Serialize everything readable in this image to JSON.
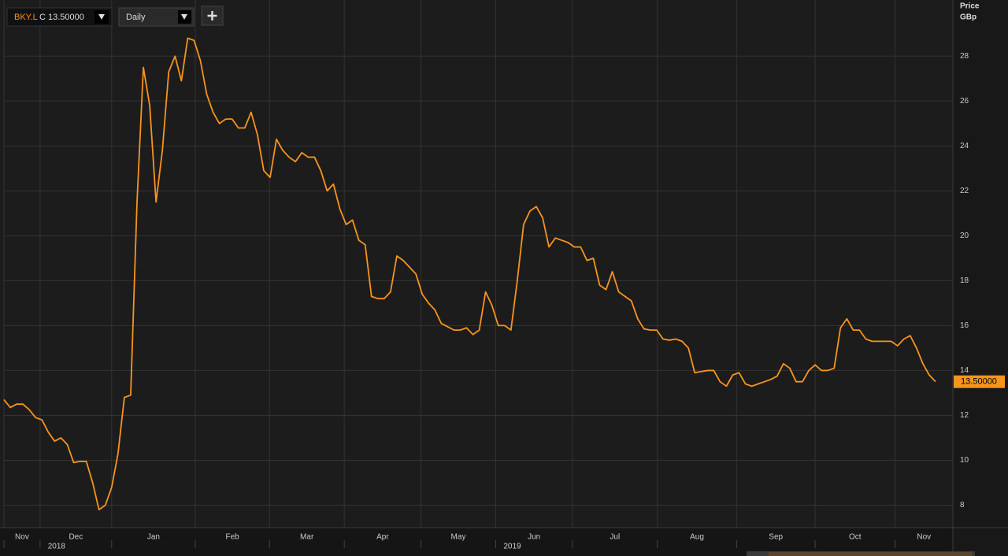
{
  "chart_data": {
    "type": "line",
    "toolbar": {
      "ticker": "BKY.L",
      "quote": "C 13.50000",
      "interval": "Daily"
    },
    "y_axis_title": "Price",
    "y_axis_unit": "GBp",
    "color": "#f7941d",
    "grid": true,
    "xlim": [
      0,
      147
    ],
    "ylim": [
      7,
      30.5
    ],
    "yticks": [
      8,
      10,
      12,
      14,
      16,
      18,
      20,
      22,
      24,
      26,
      28
    ],
    "xticks": [
      {
        "value": 0,
        "label": "Nov"
      },
      {
        "value": 5.7,
        "label": "Dec",
        "year": "2018"
      },
      {
        "value": 17.0,
        "label": "Jan"
      },
      {
        "value": 30.2,
        "label": "Feb"
      },
      {
        "value": 41.9,
        "label": "Mar"
      },
      {
        "value": 53.7,
        "label": "Apr"
      },
      {
        "value": 65.8,
        "label": "May"
      },
      {
        "value": 77.6,
        "label": "Jun",
        "year": "2019"
      },
      {
        "value": 89.7,
        "label": "Jul"
      },
      {
        "value": 103.1,
        "label": "Aug"
      },
      {
        "value": 115.6,
        "label": "Sep"
      },
      {
        "value": 128.0,
        "label": "Oct"
      },
      {
        "value": 140.6,
        "label": "Nov"
      }
    ],
    "last_price": {
      "value": 13.5,
      "label": "13.50000"
    },
    "values": [
      12.7,
      12.35,
      12.5,
      12.5,
      12.25,
      11.9,
      11.8,
      11.25,
      10.85,
      11.0,
      10.7,
      9.9,
      9.95,
      9.95,
      9.0,
      7.8,
      8.0,
      8.8,
      10.3,
      12.8,
      12.9,
      21.5,
      27.5,
      25.8,
      21.5,
      23.8,
      27.3,
      28.0,
      26.9,
      28.8,
      28.7,
      27.8,
      26.3,
      25.5,
      25.0,
      25.2,
      25.2,
      24.8,
      24.8,
      25.5,
      24.5,
      22.9,
      22.6,
      24.3,
      23.8,
      23.5,
      23.3,
      23.7,
      23.5,
      23.5,
      22.9,
      22.0,
      22.3,
      21.2,
      20.5,
      20.7,
      19.8,
      19.6,
      17.3,
      17.2,
      17.2,
      17.5,
      19.1,
      18.9,
      18.6,
      18.3,
      17.4,
      17.0,
      16.7,
      16.1,
      15.95,
      15.8,
      15.8,
      15.9,
      15.6,
      15.8,
      17.5,
      16.9,
      16.0,
      16.0,
      15.8,
      18.0,
      20.5,
      21.1,
      21.3,
      20.8,
      19.5,
      19.9,
      19.8,
      19.7,
      19.5,
      19.5,
      18.9,
      19.0,
      17.8,
      17.6,
      18.4,
      17.5,
      17.3,
      17.1,
      16.3,
      15.85,
      15.8,
      15.8,
      15.4,
      15.35,
      15.4,
      15.3,
      15.0,
      13.9,
      13.95,
      14.0,
      14.0,
      13.5,
      13.3,
      13.8,
      13.9,
      13.4,
      13.3,
      13.4,
      13.5,
      13.6,
      13.75,
      14.3,
      14.1,
      13.5,
      13.5,
      14.0,
      14.25,
      14.0,
      14.0,
      14.1,
      15.9,
      16.3,
      15.8,
      15.8,
      15.4,
      15.3,
      15.3,
      15.3,
      15.3,
      15.1,
      15.4,
      15.55,
      15.0,
      14.3,
      13.8,
      13.5
    ]
  }
}
